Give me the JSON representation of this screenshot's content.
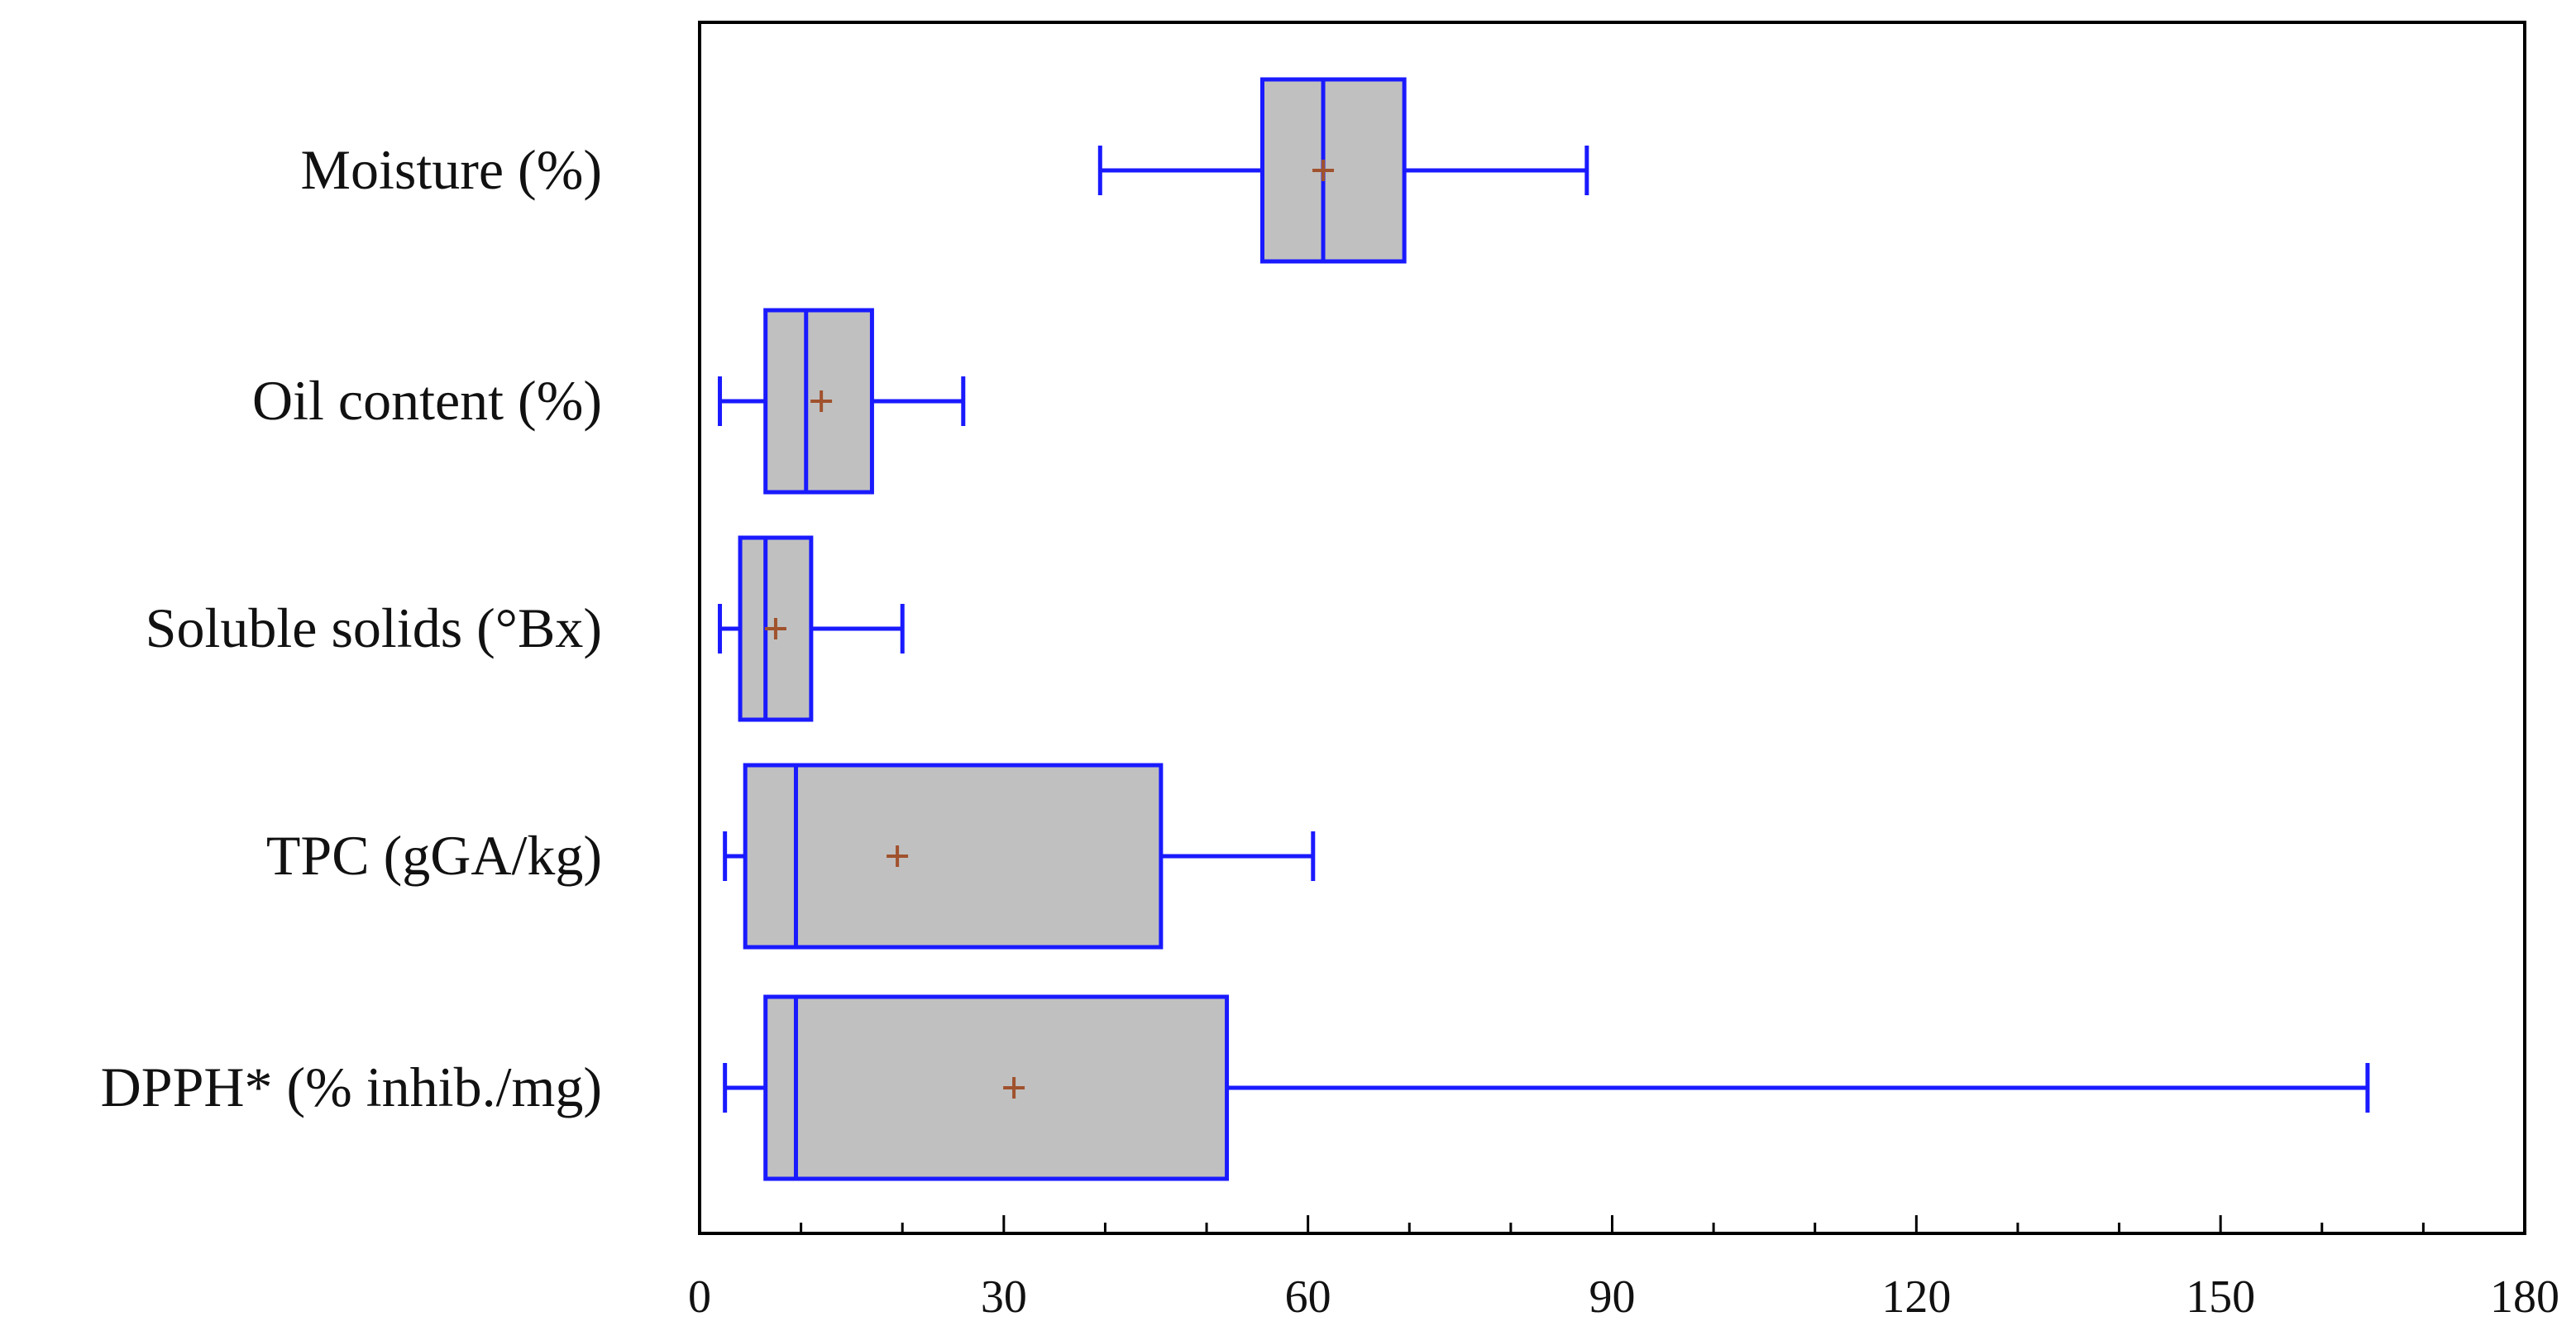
{
  "chart_data": {
    "type": "boxplot",
    "orientation": "horizontal",
    "xlim": [
      0,
      180
    ],
    "xticks": [
      0,
      30,
      60,
      90,
      120,
      150,
      180
    ],
    "minor_tick_step": 10,
    "grid": false,
    "colors": {
      "box_fill": "#c0c0c0",
      "box_stroke": "#1a1aff",
      "mean_marker": "#a0522d",
      "frame": "#000000"
    },
    "series": [
      {
        "name": "Moisture (%)",
        "whisker_low": 39.5,
        "q1": 55.5,
        "median": 61.5,
        "q3": 69.5,
        "whisker_high": 87.5,
        "mean": 61.5
      },
      {
        "name": "Oil content (%)",
        "whisker_low": 2.0,
        "q1": 6.5,
        "median": 10.5,
        "q3": 17.0,
        "whisker_high": 26.0,
        "mean": 12.0
      },
      {
        "name": "Soluble solids (°Bx)",
        "whisker_low": 2.0,
        "q1": 4.0,
        "median": 6.5,
        "q3": 11.0,
        "whisker_high": 20.0,
        "mean": 7.5
      },
      {
        "name": "TPC (gGA/kg)",
        "whisker_low": 2.5,
        "q1": 4.5,
        "median": 9.5,
        "q3": 45.5,
        "whisker_high": 60.5,
        "mean": 19.5
      },
      {
        "name": "DPPH* (% inhib./mg)",
        "whisker_low": 2.5,
        "q1": 6.5,
        "median": 9.5,
        "q3": 52.0,
        "whisker_high": 164.5,
        "mean": 31.0
      }
    ]
  }
}
